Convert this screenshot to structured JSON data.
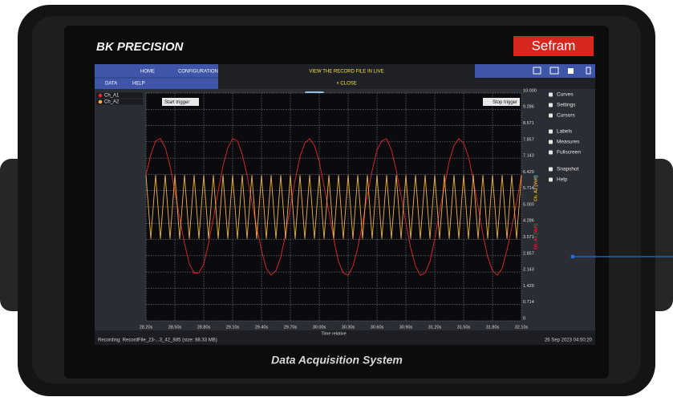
{
  "brand": "BK PRECISION",
  "logo": "Sefram",
  "product_label": "Data Acquisition System",
  "toolbar": {
    "home": "HOME",
    "configuration": "CONFIGURATION",
    "view_record": "VIEW THE RECORD FILE IN LIVE",
    "data": "DATA",
    "help": "HELP",
    "close": "× CLOSE"
  },
  "side_menu": [
    "Curves",
    "Settings",
    "Cursors",
    "Labels",
    "Measures",
    "Fullscreen",
    "Snapshot",
    "Help"
  ],
  "status": {
    "left": "Recording: RecordFile_23-...3_42_885 (size: 88.33 MB)",
    "right": "26 Sep 2023 04:50:20"
  },
  "chart": {
    "type": "line",
    "x_label": "Time relative",
    "annotations": [
      "Start trigger",
      "Stop trigger"
    ],
    "grid": true,
    "xlim": [
      28.2,
      32.1
    ],
    "ylim": [
      0,
      10
    ],
    "xticks": [
      {
        "value": 28.2,
        "label": "28.20s"
      },
      {
        "value": 28.5,
        "label": "28.50s"
      },
      {
        "value": 28.8,
        "label": "28.80s"
      },
      {
        "value": 29.1,
        "label": "29.10s"
      },
      {
        "value": 29.4,
        "label": "29.40s"
      },
      {
        "value": 29.7,
        "label": "29.70s"
      },
      {
        "value": 30.0,
        "label": "30.00s"
      },
      {
        "value": 30.3,
        "label": "30.30s"
      },
      {
        "value": 30.6,
        "label": "30.60s"
      },
      {
        "value": 30.9,
        "label": "30.90s"
      },
      {
        "value": 31.2,
        "label": "31.20s"
      },
      {
        "value": 31.5,
        "label": "31.50s"
      },
      {
        "value": 31.8,
        "label": "31.80s"
      },
      {
        "value": 32.1,
        "label": "32.10s"
      }
    ],
    "yticks": [
      0,
      0.714,
      1.429,
      2.143,
      2.857,
      3.571,
      4.286,
      {
        "value": 5,
        "label": "5.000"
      },
      5.714,
      6.429,
      7.143,
      7.857,
      8.571,
      9.286,
      {
        "value": 10,
        "label": "10.000"
      }
    ],
    "x": [
      28.2,
      28.25,
      28.3,
      28.35,
      28.4,
      28.45,
      28.5,
      28.55,
      28.6,
      28.65,
      28.7,
      28.75,
      28.8,
      28.85,
      28.9,
      28.95,
      29.0,
      29.05,
      29.1,
      29.15,
      29.2,
      29.25,
      29.3,
      29.35,
      29.4,
      29.45,
      29.5,
      29.55,
      29.6,
      29.65,
      29.7,
      29.75,
      29.8,
      29.85,
      29.9,
      29.95,
      30.0,
      30.05,
      30.1,
      30.15,
      30.2,
      30.25,
      30.3,
      30.35,
      30.4,
      30.45,
      30.5,
      30.55,
      30.6,
      30.65,
      30.7,
      30.75,
      30.8,
      30.85,
      30.9,
      30.95,
      31.0,
      31.05,
      31.1,
      31.15,
      31.2,
      31.25,
      31.3,
      31.35,
      31.4,
      31.45,
      31.5,
      31.55,
      31.6,
      31.65,
      31.7,
      31.75,
      31.8,
      31.85,
      31.9,
      31.95,
      32.0,
      32.05,
      32.1
    ],
    "series": [
      {
        "name": "Ch_A1",
        "axis_label": "Ch. A1 [Volt]",
        "color": "#e3262c",
        "values": [
          6.4,
          7.3,
          7.9,
          8.0,
          7.6,
          6.8,
          5.7,
          4.5,
          3.4,
          2.5,
          2.1,
          2.1,
          2.5,
          3.4,
          4.5,
          5.7,
          6.8,
          7.6,
          8.0,
          7.9,
          7.3,
          6.4,
          5.2,
          4.1,
          3.1,
          2.3,
          2.0,
          2.2,
          2.8,
          3.8,
          5.0,
          6.2,
          7.2,
          7.8,
          8.0,
          7.7,
          7.0,
          5.9,
          4.8,
          3.6,
          2.6,
          2.1,
          2.0,
          2.4,
          3.2,
          4.3,
          5.5,
          6.6,
          7.5,
          7.9,
          8.0,
          7.5,
          6.6,
          5.5,
          4.3,
          3.2,
          2.4,
          2.0,
          2.1,
          2.6,
          3.6,
          4.8,
          5.9,
          7.0,
          7.7,
          8.0,
          7.8,
          7.2,
          6.2,
          5.0,
          3.8,
          2.8,
          2.2,
          2.0,
          2.3,
          3.1,
          4.1,
          5.2,
          6.4
        ]
      },
      {
        "name": "Ch_A2",
        "axis_label": "Ch. A2 [Volt]",
        "color": "#f0b43a",
        "values": [
          6.4,
          3.6,
          6.4,
          3.6,
          6.4,
          3.6,
          6.4,
          3.6,
          6.4,
          3.6,
          6.4,
          3.6,
          6.4,
          3.6,
          6.4,
          3.6,
          6.4,
          3.6,
          6.4,
          3.6,
          6.4,
          3.6,
          6.4,
          3.6,
          6.4,
          3.6,
          6.4,
          3.6,
          6.4,
          3.6,
          6.4,
          3.6,
          6.4,
          3.6,
          6.4,
          3.6,
          6.4,
          3.6,
          6.4,
          3.6,
          6.4,
          3.6,
          6.4,
          3.6,
          6.4,
          3.6,
          6.4,
          3.6,
          6.4,
          3.6,
          6.4,
          3.6,
          6.4,
          3.6,
          6.4,
          3.6,
          6.4,
          3.6,
          6.4,
          3.6,
          6.4,
          3.6,
          6.4,
          3.6,
          6.4,
          3.6,
          6.4,
          3.6,
          6.4,
          3.6,
          6.4,
          3.6,
          6.4,
          3.6,
          6.4,
          3.6,
          6.4,
          3.6,
          6.4
        ]
      }
    ]
  }
}
